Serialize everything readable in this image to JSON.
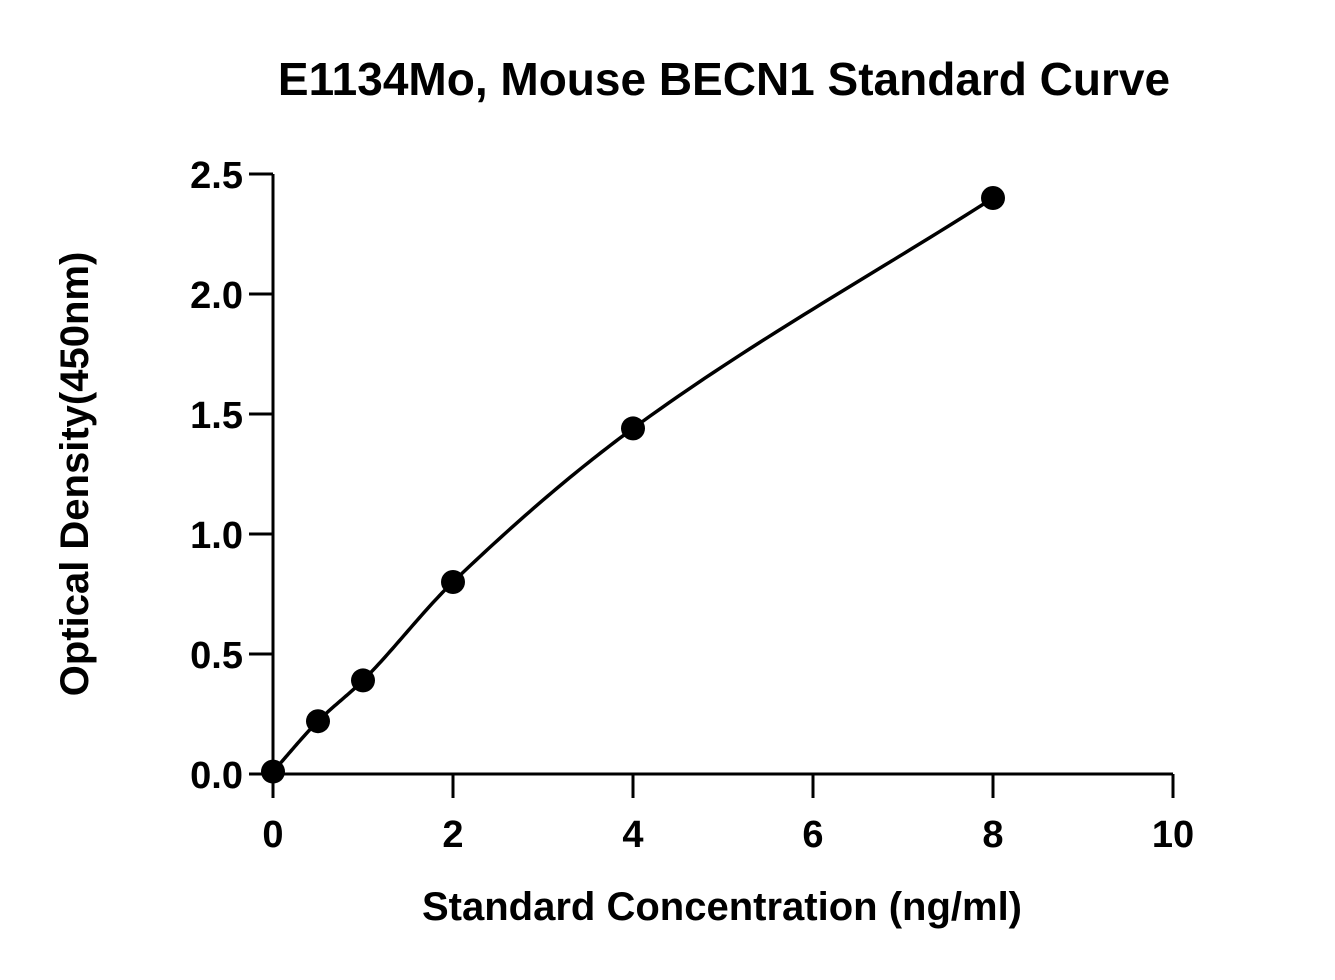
{
  "chart_data": {
    "type": "scatter",
    "title": "E1134Mo, Mouse BECN1 Standard Curve",
    "xlabel": "Standard Concentration (ng/ml)",
    "ylabel": "Optical Density(450nm)",
    "xlim": [
      0,
      10
    ],
    "ylim": [
      0,
      2.5
    ],
    "x_ticks": [
      0,
      2,
      4,
      6,
      8,
      10
    ],
    "x_tick_labels": [
      "0",
      "2",
      "4",
      "6",
      "8",
      "10"
    ],
    "y_ticks": [
      0,
      0.5,
      1.0,
      1.5,
      2.0,
      2.5
    ],
    "y_tick_labels": [
      "0.0",
      "0.5",
      "1.0",
      "1.5",
      "2.0",
      "2.5"
    ],
    "grid": false,
    "series": [
      {
        "x": [
          0,
          0.5,
          1,
          2,
          4,
          8
        ],
        "y": [
          0.01,
          0.22,
          0.39,
          0.8,
          1.44,
          2.4
        ]
      }
    ],
    "fit_curve": {
      "type": "smooth",
      "color": "#000000"
    },
    "marker_color": "#000000"
  }
}
